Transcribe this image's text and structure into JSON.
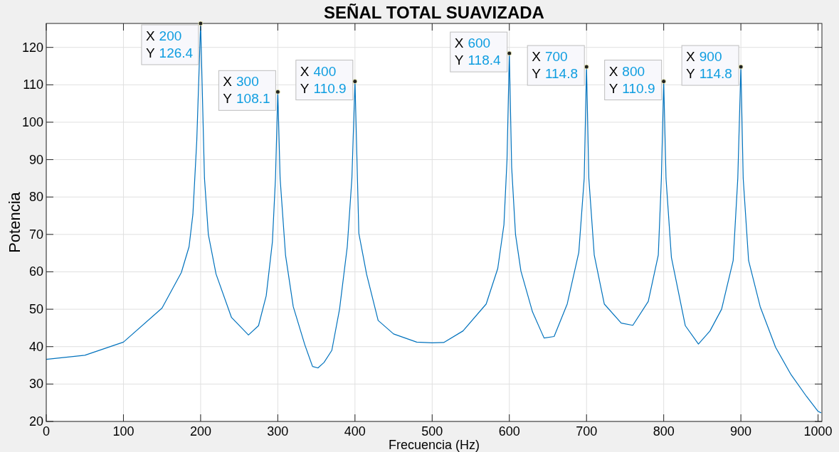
{
  "chart_data": {
    "type": "line",
    "title": "SEÑAL TOTAL SUAVIZADA",
    "xlabel": "Frecuencia (Hz)",
    "ylabel": "Potencia",
    "xlim": [
      0,
      1005
    ],
    "ylim": [
      20,
      126.4
    ],
    "xticks": [
      0,
      100,
      200,
      300,
      400,
      500,
      600,
      700,
      800,
      900,
      1000
    ],
    "yticks": [
      20,
      30,
      40,
      50,
      60,
      70,
      80,
      90,
      100,
      110,
      120
    ],
    "grid": true,
    "series": [
      {
        "color": "#0072bd",
        "x": [
          0,
          50,
          100,
          150,
          175,
          185,
          190,
          195,
          200,
          205,
          210,
          220,
          240,
          262,
          275,
          285,
          293,
          297,
          300,
          303,
          310,
          320,
          335,
          345,
          352,
          360,
          370,
          380,
          390,
          396,
          400,
          405,
          415,
          430,
          450,
          480,
          500,
          515,
          540,
          570,
          585,
          593,
          597,
          600,
          603,
          608,
          615,
          630,
          645,
          658,
          675,
          690,
          697,
          700,
          703,
          710,
          723,
          745,
          760,
          780,
          793,
          797,
          800,
          803,
          810,
          828,
          845,
          860,
          875,
          890,
          896,
          900,
          903,
          910,
          925,
          945,
          965,
          985,
          1000,
          1004
        ],
        "values": [
          36.6,
          37.7,
          41.2,
          50.3,
          59.8,
          66.7,
          75.4,
          95,
          126.4,
          85,
          70,
          59.4,
          47.8,
          43.1,
          45.6,
          53.6,
          68,
          85,
          108.1,
          85,
          64.5,
          50.7,
          40.5,
          34.7,
          34.3,
          35.8,
          39,
          50,
          66.7,
          85,
          110.9,
          70.3,
          59.4,
          47,
          43.4,
          41.2,
          41,
          41.1,
          44.2,
          51.4,
          60.9,
          72.6,
          90,
          118.4,
          88,
          70,
          60.2,
          49.3,
          42.3,
          42.7,
          51.4,
          65.2,
          85,
          114.8,
          85,
          64.5,
          51.4,
          46.3,
          45.7,
          52.1,
          64.5,
          85,
          110.9,
          85,
          63.8,
          45.6,
          40.7,
          44.2,
          50,
          63,
          85,
          114.8,
          85,
          63,
          50.7,
          39.8,
          32.5,
          26.7,
          22.7,
          22.3
        ]
      }
    ],
    "annotations": [
      {
        "text": "X 200\nY 126.4",
        "x": 200,
        "y": 126.4
      },
      {
        "text": "X 300\nY 108.1",
        "x": 300,
        "y": 108.1
      },
      {
        "text": "X 400\nY 110.9",
        "x": 400,
        "y": 110.9
      },
      {
        "text": "X 600\nY 118.4",
        "x": 600,
        "y": 118.4
      },
      {
        "text": "X 700\nY 114.8",
        "x": 700,
        "y": 114.8
      },
      {
        "text": "X 800\nY 110.9",
        "x": 800,
        "y": 110.9
      },
      {
        "text": "X 900\nY 114.8",
        "x": 900,
        "y": 114.8
      }
    ]
  }
}
